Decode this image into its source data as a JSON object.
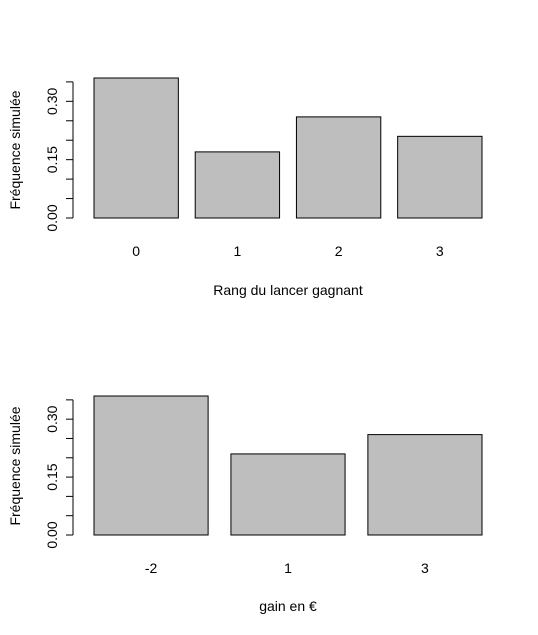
{
  "chart_data": [
    {
      "type": "bar",
      "categories": [
        "0",
        "1",
        "2",
        "3"
      ],
      "values": [
        0.36,
        0.17,
        0.26,
        0.21
      ],
      "xlabel": "Rang du lancer gagnant",
      "ylabel": "Fréquence simulée",
      "ylim": [
        0,
        0.35
      ],
      "yticks": [
        "0.00",
        "0.15",
        "0.30"
      ],
      "bar_color": "#bebebe",
      "grid": false
    },
    {
      "type": "bar",
      "categories": [
        "-2",
        "1",
        "3"
      ],
      "values": [
        0.36,
        0.21,
        0.26
      ],
      "xlabel": "gain en €",
      "ylabel": "Fréquence simulée",
      "ylim": [
        0,
        0.35
      ],
      "yticks": [
        "0.00",
        "0.15",
        "0.30"
      ],
      "bar_color": "#bebebe",
      "grid": false
    }
  ]
}
